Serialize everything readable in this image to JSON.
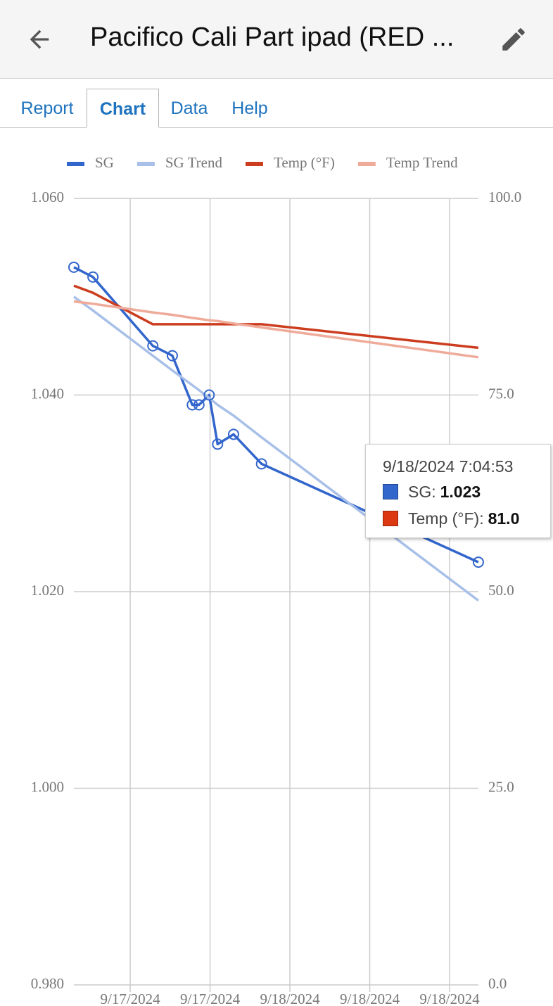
{
  "header": {
    "title": "Pacifico Cali Part ipad (RED ..."
  },
  "tabs": [
    "Report",
    "Chart",
    "Data",
    "Help"
  ],
  "active_tab": 1,
  "chart_data": {
    "type": "line",
    "x": [
      "2024-09-17T15:53",
      "2024-09-17T16:36",
      "2024-09-17T18:51",
      "2024-09-17T19:35",
      "2024-09-17T20:20",
      "2024-09-17T20:35",
      "2024-09-17T20:58",
      "2024-09-17T21:17",
      "2024-09-17T21:53",
      "2024-09-17T22:56",
      "2024-09-18T07:04:53"
    ],
    "xlim": [
      "2024-09-17T15:53",
      "2024-09-18T07:05"
    ],
    "xticks": [
      {
        "value": "2024-09-17T18:00",
        "label": "9/17/2024"
      },
      {
        "value": "2024-09-17T21:00",
        "label": "9/17/2024"
      },
      {
        "value": "2024-09-18T00:00",
        "label": "9/18/2024"
      },
      {
        "value": "2024-09-18T03:00",
        "label": "9/18/2024"
      },
      {
        "value": "2024-09-18T06:00",
        "label": "9/18/2024"
      }
    ],
    "ylim": [
      0.98,
      1.06
    ],
    "yticks": [
      {
        "value": 0.98,
        "label": "0.980"
      },
      {
        "value": 1.0,
        "label": "1.000"
      },
      {
        "value": 1.02,
        "label": "1.020"
      },
      {
        "value": 1.04,
        "label": "1.040"
      },
      {
        "value": 1.06,
        "label": "1.060"
      }
    ],
    "y2lim": [
      0,
      100
    ],
    "y2ticks": [
      {
        "value": 0,
        "label": "0.0"
      },
      {
        "value": 25,
        "label": "25.0"
      },
      {
        "value": 50,
        "label": "50.0"
      },
      {
        "value": 75,
        "label": "75.0"
      },
      {
        "value": 100,
        "label": "100.0"
      }
    ],
    "grid": true,
    "legend": "top",
    "series": [
      {
        "name": "SG",
        "color": "#3366cc",
        "markers": true,
        "values": [
          1.053,
          1.052,
          1.045,
          1.044,
          1.039,
          1.039,
          1.04,
          1.035,
          1.036,
          1.033,
          1.023
        ]
      },
      {
        "name": "SG Trend",
        "color": "#a8c0e8",
        "values": [
          1.05,
          1.0486,
          1.044,
          1.0425,
          1.041,
          1.0405,
          1.0397,
          1.039,
          1.0379,
          1.0357,
          1.0191
        ]
      },
      {
        "name": "Temp (°F)",
        "color": "#cc3d1f",
        "axis": "y2",
        "values": [
          88.9,
          88.0,
          84.0,
          84.0,
          84.0,
          84.0,
          84.0,
          84.0,
          84.0,
          84.0,
          81.0
        ]
      },
      {
        "name": "Temp Trend",
        "color": "#efab9a",
        "axis": "y2",
        "values": [
          86.9,
          86.6,
          85.5,
          85.2,
          84.8,
          84.7,
          84.5,
          84.4,
          84.1,
          83.6,
          79.8
        ]
      }
    ]
  },
  "tooltip": {
    "title": "9/18/2024 7:04:53",
    "items": [
      {
        "label": "SG:",
        "value": "1.023",
        "color": "#3366cc"
      },
      {
        "label": "Temp (°F):",
        "value": "81.0",
        "color": "#dc3912"
      }
    ]
  }
}
